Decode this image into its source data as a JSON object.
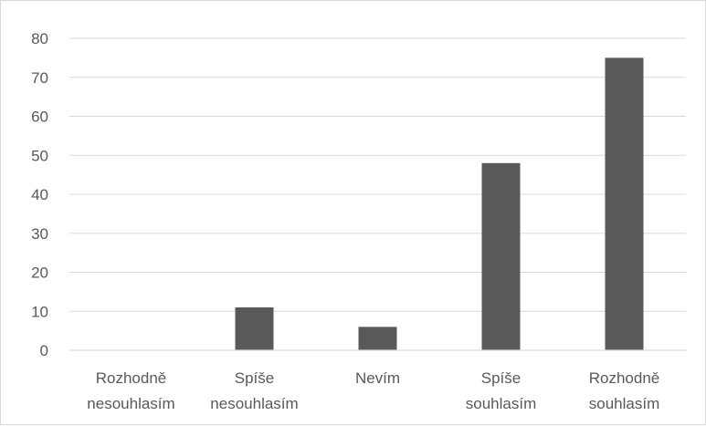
{
  "chart_data": {
    "type": "bar",
    "categories": [
      [
        "Rozhodně",
        "nesouhlasím"
      ],
      [
        "Spíše",
        "nesouhlasím"
      ],
      [
        "Nevím"
      ],
      [
        "Spíše",
        "souhlasím"
      ],
      [
        "Rozhodně",
        "souhlasím"
      ]
    ],
    "values": [
      0,
      11,
      6,
      48,
      75
    ],
    "ylim": [
      0,
      80
    ],
    "yticks": [
      "0",
      "10",
      "20",
      "30",
      "40",
      "50",
      "60",
      "70",
      "80"
    ],
    "grid": true,
    "legend": "none",
    "bar_color": "#595959"
  }
}
